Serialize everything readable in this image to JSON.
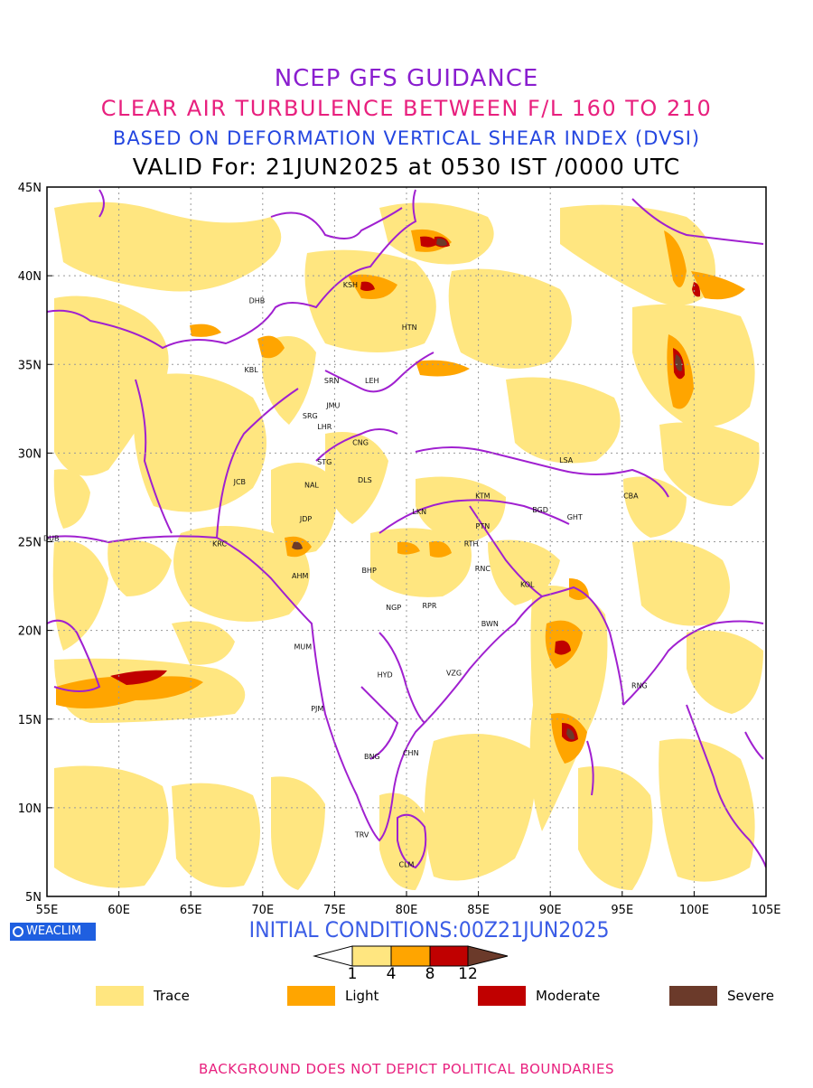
{
  "titles": {
    "line1": "NCEP GFS GUIDANCE",
    "line2": "CLEAR AIR TURBULENCE BETWEEN F/L 160 TO 210",
    "line3": "BASED ON DEFORMATION VERTICAL SHEAR INDEX (DVSI)",
    "line4": "VALID For: 21JUN2025 at 0530 IST /0000 UTC"
  },
  "map": {
    "lon_range": [
      55,
      105
    ],
    "lat_range": [
      5,
      45
    ],
    "lon_ticks": [
      "55E",
      "60E",
      "65E",
      "70E",
      "75E",
      "80E",
      "85E",
      "90E",
      "95E",
      "100E",
      "105E"
    ],
    "lat_ticks": [
      "5N",
      "10N",
      "15N",
      "20N",
      "25N",
      "30N",
      "35N",
      "40N",
      "45N"
    ],
    "gridlines": true,
    "boundary_color": "#a020d0",
    "cities": [
      {
        "code": "DHB",
        "lon": 69.6,
        "lat": 38.6
      },
      {
        "code": "KSH",
        "lon": 76.1,
        "lat": 39.5
      },
      {
        "code": "HTN",
        "lon": 80.2,
        "lat": 37.1
      },
      {
        "code": "KBL",
        "lon": 69.2,
        "lat": 34.7
      },
      {
        "code": "SRN",
        "lon": 74.8,
        "lat": 34.1
      },
      {
        "code": "LEH",
        "lon": 77.6,
        "lat": 34.1
      },
      {
        "code": "JMU",
        "lon": 74.9,
        "lat": 32.7
      },
      {
        "code": "SRG",
        "lon": 73.3,
        "lat": 32.1
      },
      {
        "code": "LHR",
        "lon": 74.3,
        "lat": 31.5
      },
      {
        "code": "CNG",
        "lon": 76.8,
        "lat": 30.6
      },
      {
        "code": "STG",
        "lon": 74.3,
        "lat": 29.5
      },
      {
        "code": "LSA",
        "lon": 91.1,
        "lat": 29.6
      },
      {
        "code": "JCB",
        "lon": 68.4,
        "lat": 28.4
      },
      {
        "code": "NAL",
        "lon": 73.4,
        "lat": 28.2
      },
      {
        "code": "DLS",
        "lon": 77.1,
        "lat": 28.5
      },
      {
        "code": "KTM",
        "lon": 85.3,
        "lat": 27.6
      },
      {
        "code": "CBA",
        "lon": 95.6,
        "lat": 27.6
      },
      {
        "code": "LKN",
        "lon": 80.9,
        "lat": 26.7
      },
      {
        "code": "BGD",
        "lon": 89.3,
        "lat": 26.8
      },
      {
        "code": "GHT",
        "lon": 91.7,
        "lat": 26.4
      },
      {
        "code": "JDP",
        "lon": 73.0,
        "lat": 26.3
      },
      {
        "code": "PTN",
        "lon": 85.3,
        "lat": 25.9
      },
      {
        "code": "DUB",
        "lon": 55.3,
        "lat": 25.2
      },
      {
        "code": "KRC",
        "lon": 67.0,
        "lat": 24.9
      },
      {
        "code": "RTH",
        "lon": 84.5,
        "lat": 24.9
      },
      {
        "code": "AHM",
        "lon": 72.6,
        "lat": 23.1
      },
      {
        "code": "BHP",
        "lon": 77.4,
        "lat": 23.4
      },
      {
        "code": "RNC",
        "lon": 85.3,
        "lat": 23.5
      },
      {
        "code": "KOL",
        "lon": 88.4,
        "lat": 22.6
      },
      {
        "code": "NGP",
        "lon": 79.1,
        "lat": 21.3
      },
      {
        "code": "RPR",
        "lon": 81.6,
        "lat": 21.4
      },
      {
        "code": "BWN",
        "lon": 85.8,
        "lat": 20.4
      },
      {
        "code": "MUM",
        "lon": 72.8,
        "lat": 19.1
      },
      {
        "code": "HYD",
        "lon": 78.5,
        "lat": 17.5
      },
      {
        "code": "VZG",
        "lon": 83.3,
        "lat": 17.6
      },
      {
        "code": "RNG",
        "lon": 96.2,
        "lat": 16.9
      },
      {
        "code": "PJM",
        "lon": 73.8,
        "lat": 15.6
      },
      {
        "code": "CHN",
        "lon": 80.3,
        "lat": 13.1
      },
      {
        "code": "BNG",
        "lon": 77.6,
        "lat": 12.9
      },
      {
        "code": "TRV",
        "lon": 76.9,
        "lat": 8.5
      },
      {
        "code": "CLM",
        "lon": 80.0,
        "lat": 6.8
      }
    ]
  },
  "footer": {
    "brand": "WEACLIM",
    "initial_conditions": "INITIAL CONDITIONS:00Z21JUN2025"
  },
  "colorbar": {
    "labels": [
      "1",
      "4",
      "8",
      "12"
    ],
    "colors": [
      "#ffe680",
      "#ffa500",
      "#c00000",
      "#6b3a2a"
    ]
  },
  "legend": [
    {
      "label": "Trace",
      "color": "#ffe680"
    },
    {
      "label": "Light",
      "color": "#ffa500"
    },
    {
      "label": "Moderate",
      "color": "#c00000"
    },
    {
      "label": "Severe",
      "color": "#6b3a2a"
    }
  ],
  "disclaimer": "BACKGROUND DOES NOT DEPICT POLITICAL BOUNDARIES"
}
